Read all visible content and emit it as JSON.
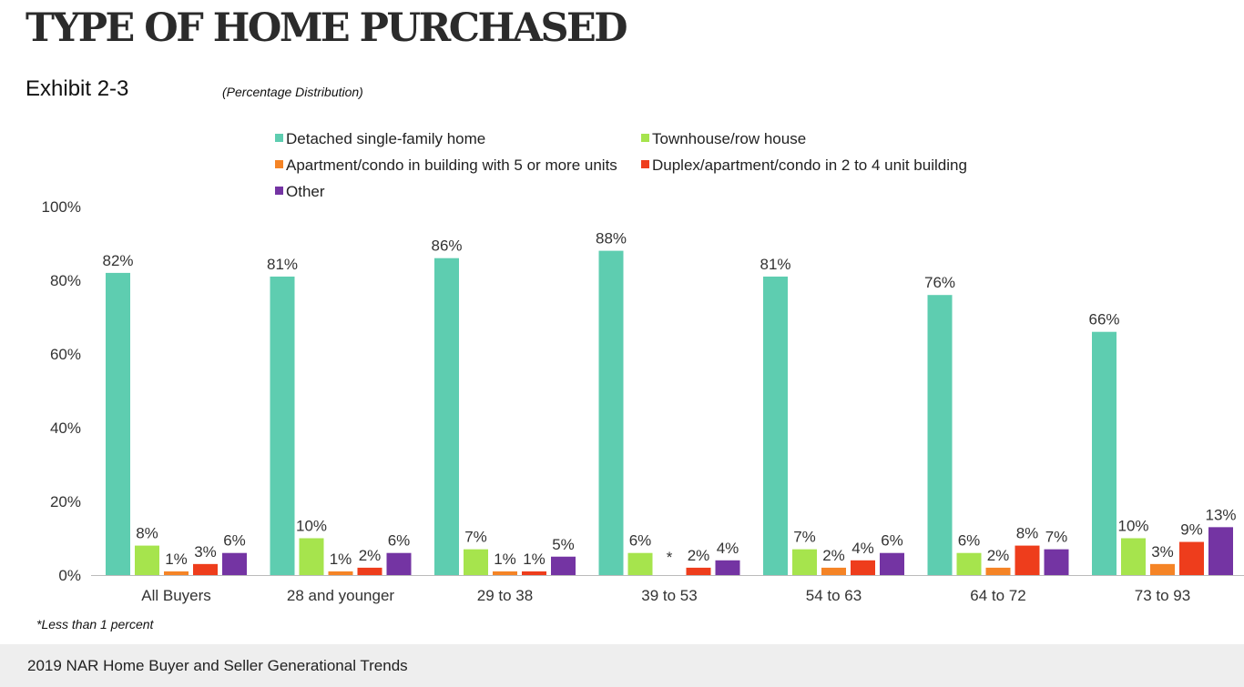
{
  "page": {
    "title": "TYPE OF HOME PURCHASED",
    "exhibit": "Exhibit 2-3",
    "subtitle": "(Percentage Distribution)",
    "footnote": "*Less than 1 percent",
    "footer": "2019 NAR Home Buyer and Seller Generational Trends"
  },
  "chart_data": {
    "type": "bar",
    "categories": [
      "All Buyers",
      "28 and younger",
      "29 to 38",
      "39 to 53",
      "54 to 63",
      "64 to 72",
      "73 to 93"
    ],
    "series": [
      {
        "name": "Detached single-family home",
        "color": "#5ecdb0",
        "values": [
          82,
          81,
          86,
          88,
          81,
          76,
          66
        ],
        "labels": [
          "82%",
          "81%",
          "86%",
          "88%",
          "81%",
          "76%",
          "66%"
        ]
      },
      {
        "name": "Townhouse/row house",
        "color": "#a6e44d",
        "values": [
          8,
          10,
          7,
          6,
          7,
          6,
          10
        ],
        "labels": [
          "8%",
          "10%",
          "7%",
          "6%",
          "7%",
          "6%",
          "10%"
        ]
      },
      {
        "name": "Apartment/condo in building with 5 or more units",
        "color": "#f58426",
        "values": [
          1,
          1,
          1,
          0,
          2,
          2,
          3
        ],
        "labels": [
          "1%",
          "1%",
          "1%",
          "*",
          "2%",
          "2%",
          "3%"
        ]
      },
      {
        "name": "Duplex/apartment/condo in 2 to 4 unit building",
        "color": "#ee3d1c",
        "values": [
          3,
          2,
          1,
          2,
          4,
          8,
          9
        ],
        "labels": [
          "3%",
          "2%",
          "1%",
          "2%",
          "4%",
          "8%",
          "9%"
        ]
      },
      {
        "name": "Other",
        "color": "#7434a3",
        "values": [
          6,
          6,
          5,
          4,
          6,
          7,
          13
        ],
        "labels": [
          "6%",
          "6%",
          "5%",
          "4%",
          "6%",
          "7%",
          "13%"
        ]
      }
    ],
    "yticks": [
      "0%",
      "20%",
      "40%",
      "60%",
      "80%",
      "100%"
    ],
    "ylim": [
      0,
      100
    ],
    "xlabel": "",
    "ylabel": "",
    "legend_position": "top-center",
    "grid": false
  }
}
